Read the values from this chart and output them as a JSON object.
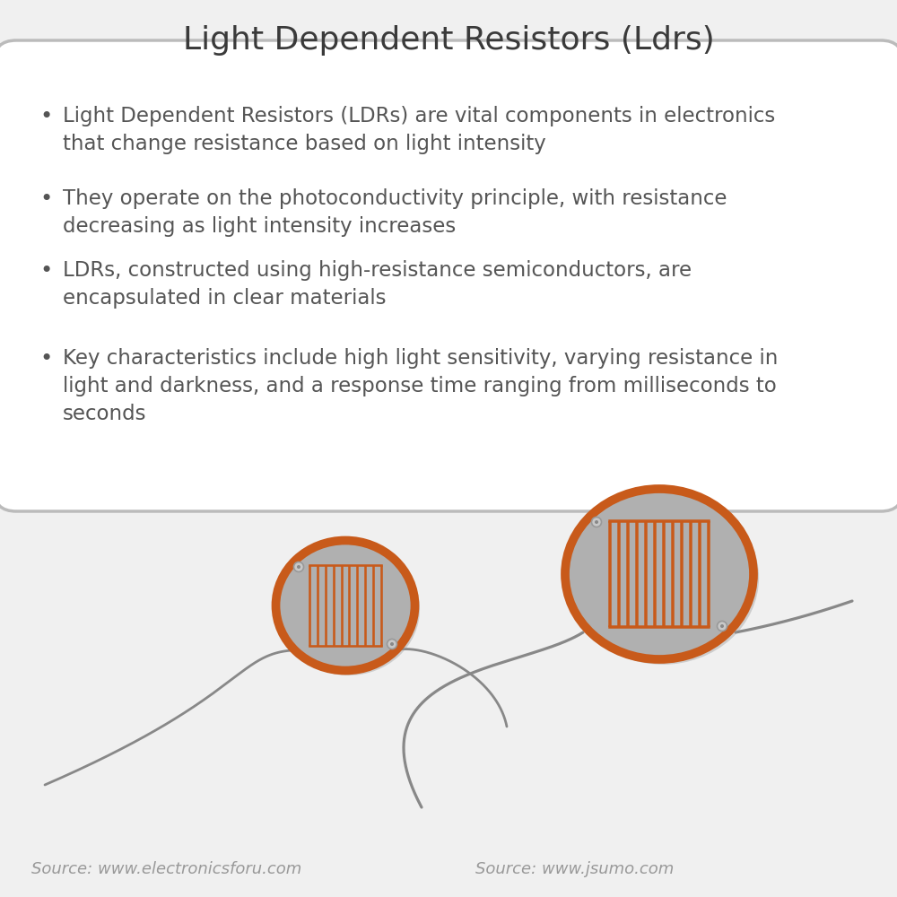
{
  "title": "Light Dependent Resistors (Ldrs)",
  "title_fontsize": 26,
  "title_color": "#3a3a3a",
  "bg_color": "#f0f0f0",
  "box_bg_color": "#ffffff",
  "box_edge_color": "#bbbbbb",
  "text_color": "#555555",
  "bullet_points": [
    "Light Dependent Resistors (LDRs) are vital components in electronics\nthat change resistance based on light intensity",
    "They operate on the photoconductivity principle, with resistance\ndecreasing as light intensity increases",
    "LDRs, constructed using high-resistance semiconductors, are\nencapsulated in clear materials",
    "Key characteristics include high light sensitivity, varying resistance in\nlight and darkness, and a response time ranging from milliseconds to\nseconds"
  ],
  "bullet_fontsize": 16.5,
  "source_left": "Source: www.electronicsforu.com",
  "source_right": "Source: www.jsumo.com",
  "source_fontsize": 13,
  "source_color": "#999999",
  "ldr_body_color": "#b0b0b0",
  "ldr_orange": "#c85a1a",
  "ldr_wire_color": "#888888",
  "ldr_dot_color": "#aaaaaa"
}
